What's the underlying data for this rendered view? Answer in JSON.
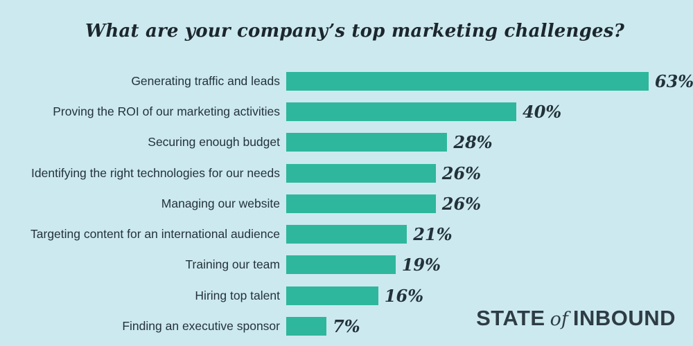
{
  "title": "What are your company’s top marketing challenges?",
  "chart_data": {
    "type": "bar",
    "orientation": "horizontal",
    "title": "What are your company’s top marketing challenges?",
    "categories": [
      "Generating traffic and leads",
      "Proving the ROI of our marketing activities",
      "Securing enough budget",
      "Identifying the right technologies for our needs",
      "Managing our website",
      "Targeting content for an international audience",
      "Training our team",
      "Hiring top talent",
      "Finding an executive sponsor"
    ],
    "values": [
      63,
      40,
      28,
      26,
      26,
      21,
      19,
      16,
      7
    ],
    "value_labels": [
      "63%",
      "40%",
      "28%",
      "26%",
      "26%",
      "21%",
      "19%",
      "16%",
      "7%"
    ],
    "xlabel": "",
    "ylabel": "",
    "xlim": [
      0,
      70
    ],
    "grid": false,
    "legend": false,
    "bar_color": "#2eb79c",
    "background_color": "#cce9ef",
    "label_color": "#24323c",
    "value_color": "#22313a"
  },
  "logo": {
    "word1": "STATE",
    "word2": "of",
    "word3": "INBOUND",
    "color": "#2e3c45"
  }
}
